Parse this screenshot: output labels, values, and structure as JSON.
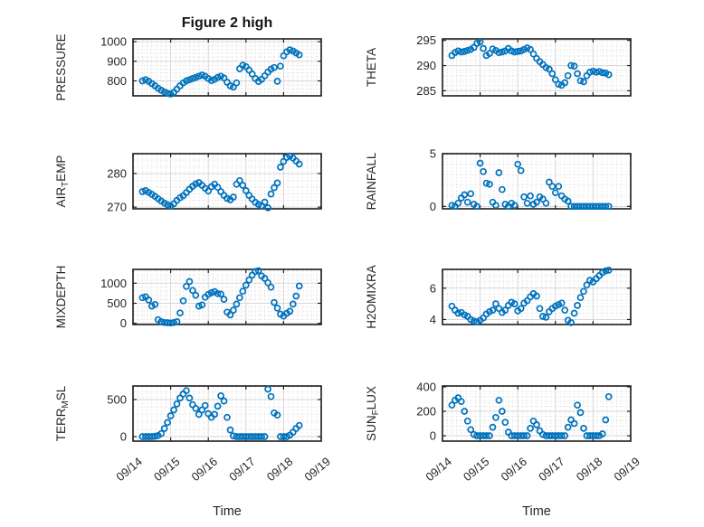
{
  "figure": {
    "title": "Figure 2 high",
    "xlabel": "Time",
    "colors": {
      "marker": "#0072BD",
      "axis": "#1c1c1c",
      "text": "#262626",
      "grid_major": "#d7d7d7",
      "grid_minor": "#cfcfcf",
      "background": "#ffffff"
    },
    "x_ticks": {
      "labels": [
        "09/14",
        "09/15",
        "09/16",
        "09/17",
        "09/18",
        "09/19"
      ],
      "values": [
        0,
        1,
        2,
        3,
        4,
        5
      ],
      "rotation_deg": -40
    },
    "grid": {
      "major": true,
      "minor_dotted": true,
      "x_minor_per_day": 8
    }
  },
  "chart_data": {
    "type": "scatter",
    "marker": "open-circle",
    "x_unit": "days since 09/14 00:00",
    "x_days": [
      0.25,
      0.333,
      0.417,
      0.5,
      0.583,
      0.667,
      0.75,
      0.833,
      0.917,
      1,
      1.083,
      1.167,
      1.25,
      1.333,
      1.417,
      1.5,
      1.583,
      1.667,
      1.75,
      1.833,
      1.917,
      2,
      2.083,
      2.167,
      2.25,
      2.333,
      2.417,
      2.5,
      2.583,
      2.667,
      2.75,
      2.833,
      2.917,
      3,
      3.083,
      3.167,
      3.25,
      3.333,
      3.417,
      3.5,
      3.583,
      3.667,
      3.75,
      3.833,
      3.917,
      4,
      4.083,
      4.167,
      4.25,
      4.333,
      4.417
    ],
    "subplots": [
      {
        "name": "pressure",
        "row": 0,
        "col": 0,
        "ylabel_parts": [
          {
            "text": "PRESSURE",
            "sub": false
          }
        ],
        "ylim": [
          724,
          1014
        ],
        "yticks": [
          800,
          900,
          1000
        ],
        "ytick_labels": [
          "800",
          "900",
          "1000"
        ],
        "y": [
          800,
          806,
          798,
          786,
          775,
          762,
          752,
          744,
          737,
          733,
          742,
          758,
          775,
          790,
          800,
          806,
          812,
          818,
          824,
          830,
          824,
          812,
          802,
          808,
          818,
          824,
          815,
          793,
          775,
          768,
          790,
          862,
          880,
          872,
          855,
          835,
          812,
          797,
          808,
          826,
          845,
          860,
          868,
          798,
          875,
          928,
          948,
          958,
          952,
          942,
          933
        ]
      },
      {
        "name": "theta",
        "row": 0,
        "col": 1,
        "ylabel_parts": [
          {
            "text": "THETA",
            "sub": false
          }
        ],
        "ylim": [
          284.0,
          295.3
        ],
        "yticks": [
          285,
          290,
          295
        ],
        "ytick_labels": [
          "285",
          "290",
          "295"
        ],
        "y": [
          292.0,
          292.6,
          292.9,
          292.7,
          292.8,
          293.0,
          293.2,
          293.6,
          294.4,
          294.7,
          293.4,
          292.0,
          292.4,
          293.3,
          293.0,
          292.6,
          292.7,
          292.9,
          293.4,
          292.9,
          292.7,
          292.8,
          292.9,
          293.2,
          293.5,
          293.2,
          292.3,
          291.4,
          290.8,
          290.2,
          289.6,
          289.3,
          288.4,
          287.2,
          286.3,
          286.1,
          286.6,
          288.0,
          290.0,
          289.9,
          288.4,
          287.0,
          286.8,
          288.0,
          288.7,
          288.9,
          288.7,
          288.8,
          288.6,
          288.5,
          288.2
        ]
      },
      {
        "name": "air-temp",
        "row": 1,
        "col": 0,
        "ylabel_parts": [
          {
            "text": "AIR",
            "sub": false
          },
          {
            "text": "T",
            "sub": true
          },
          {
            "text": "EMP",
            "sub": false
          }
        ],
        "ylim": [
          269.5,
          285.9
        ],
        "yticks": [
          270,
          280
        ],
        "ytick_labels": [
          "270",
          "280"
        ],
        "y": [
          274.6,
          274.9,
          274.4,
          273.8,
          273.2,
          272.5,
          271.8,
          271.2,
          270.7,
          270.3,
          271.0,
          272.0,
          272.8,
          273.4,
          274.3,
          275.3,
          276.2,
          276.9,
          277.3,
          276.5,
          275.6,
          274.8,
          276.1,
          276.8,
          275.9,
          274.6,
          273.5,
          272.6,
          272.2,
          273.0,
          276.8,
          277.9,
          276.5,
          274.9,
          273.5,
          272.4,
          271.4,
          270.8,
          270.4,
          271.5,
          269.8,
          273.9,
          275.8,
          277.2,
          281.9,
          283.6,
          284.8,
          285.2,
          284.6,
          283.7,
          282.8
        ]
      },
      {
        "name": "rainfall",
        "row": 1,
        "col": 1,
        "ylabel_parts": [
          {
            "text": "RAINFALL",
            "sub": false
          }
        ],
        "ylim": [
          -0.23,
          5.0
        ],
        "yticks": [
          0,
          5
        ],
        "ytick_labels": [
          "0",
          "5"
        ],
        "y": [
          0.1,
          0,
          0.3,
          0.8,
          1.1,
          0.4,
          1.2,
          0.2,
          0,
          4.1,
          3.3,
          2.2,
          2.1,
          0.4,
          0.1,
          3.2,
          1.6,
          0.2,
          0,
          0.3,
          0.1,
          4.0,
          3.4,
          0.9,
          0.3,
          1.0,
          0.2,
          0.4,
          0.9,
          0.7,
          0.3,
          2.3,
          1.9,
          1.3,
          1.9,
          1.0,
          0.7,
          0.5,
          0,
          0,
          0,
          0,
          0,
          0,
          0,
          0,
          0,
          0,
          0,
          0,
          0
        ]
      },
      {
        "name": "mixdepth",
        "row": 2,
        "col": 0,
        "ylabel_parts": [
          {
            "text": "MIXDEPTH",
            "sub": false
          }
        ],
        "ylim": [
          -29,
          1344
        ],
        "yticks": [
          0,
          500,
          1000
        ],
        "ytick_labels": [
          "0",
          "500",
          "1000"
        ],
        "y": [
          640,
          660,
          580,
          430,
          470,
          90,
          40,
          20,
          15,
          10,
          20,
          40,
          260,
          560,
          920,
          1040,
          820,
          700,
          430,
          460,
          650,
          720,
          760,
          790,
          740,
          730,
          600,
          280,
          210,
          330,
          480,
          640,
          800,
          950,
          1080,
          1200,
          1290,
          1310,
          1180,
          1120,
          1010,
          900,
          520,
          380,
          230,
          180,
          250,
          300,
          480,
          680,
          930
        ]
      },
      {
        "name": "h2omixra",
        "row": 2,
        "col": 1,
        "ylabel_parts": [
          {
            "text": "H2OMIXRA",
            "sub": false
          }
        ],
        "ylim": [
          3.68,
          7.2
        ],
        "yticks": [
          4,
          6
        ],
        "ytick_labels": [
          "4",
          "6"
        ],
        "y": [
          4.85,
          4.6,
          4.4,
          4.45,
          4.3,
          4.2,
          4.0,
          3.9,
          3.85,
          3.95,
          4.1,
          4.35,
          4.5,
          4.6,
          5.0,
          4.7,
          4.45,
          4.6,
          4.9,
          5.1,
          5.0,
          4.55,
          4.7,
          5.05,
          5.2,
          5.45,
          5.65,
          5.5,
          4.7,
          4.2,
          4.15,
          4.5,
          4.7,
          4.85,
          4.95,
          5.05,
          4.6,
          3.95,
          3.8,
          4.4,
          4.9,
          5.4,
          5.8,
          6.2,
          6.5,
          6.4,
          6.6,
          6.8,
          7.0,
          7.1,
          7.15
        ]
      },
      {
        "name": "terr-msl",
        "row": 3,
        "col": 0,
        "ylabel_parts": [
          {
            "text": "TERR",
            "sub": false
          },
          {
            "text": "M",
            "sub": true
          },
          {
            "text": "SL",
            "sub": false
          }
        ],
        "ylim": [
          -61,
          683
        ],
        "yticks": [
          0,
          500
        ],
        "ytick_labels": [
          "0",
          "500"
        ],
        "y": [
          0,
          0,
          0,
          0,
          5,
          15,
          40,
          110,
          190,
          280,
          360,
          440,
          520,
          575,
          620,
          520,
          430,
          380,
          300,
          360,
          420,
          310,
          260,
          300,
          410,
          550,
          480,
          260,
          90,
          10,
          0,
          0,
          0,
          0,
          0,
          0,
          0,
          0,
          0,
          0,
          640,
          540,
          320,
          290,
          0,
          0,
          0,
          20,
          60,
          110,
          150
        ]
      },
      {
        "name": "sun-flux",
        "row": 3,
        "col": 1,
        "ylabel_parts": [
          {
            "text": "SUN",
            "sub": false
          },
          {
            "text": "F",
            "sub": true
          },
          {
            "text": "LUX",
            "sub": false
          }
        ],
        "ylim": [
          -44,
          407
        ],
        "yticks": [
          0,
          200,
          400
        ],
        "ytick_labels": [
          "0",
          "200",
          "400"
        ],
        "y": [
          250,
          290,
          310,
          280,
          200,
          120,
          50,
          10,
          0,
          0,
          0,
          0,
          0,
          70,
          150,
          290,
          200,
          110,
          30,
          0,
          0,
          0,
          0,
          0,
          0,
          60,
          120,
          90,
          40,
          10,
          0,
          0,
          0,
          0,
          0,
          0,
          0,
          70,
          130,
          100,
          250,
          190,
          60,
          0,
          0,
          0,
          0,
          0,
          15,
          130,
          320
        ]
      }
    ]
  }
}
